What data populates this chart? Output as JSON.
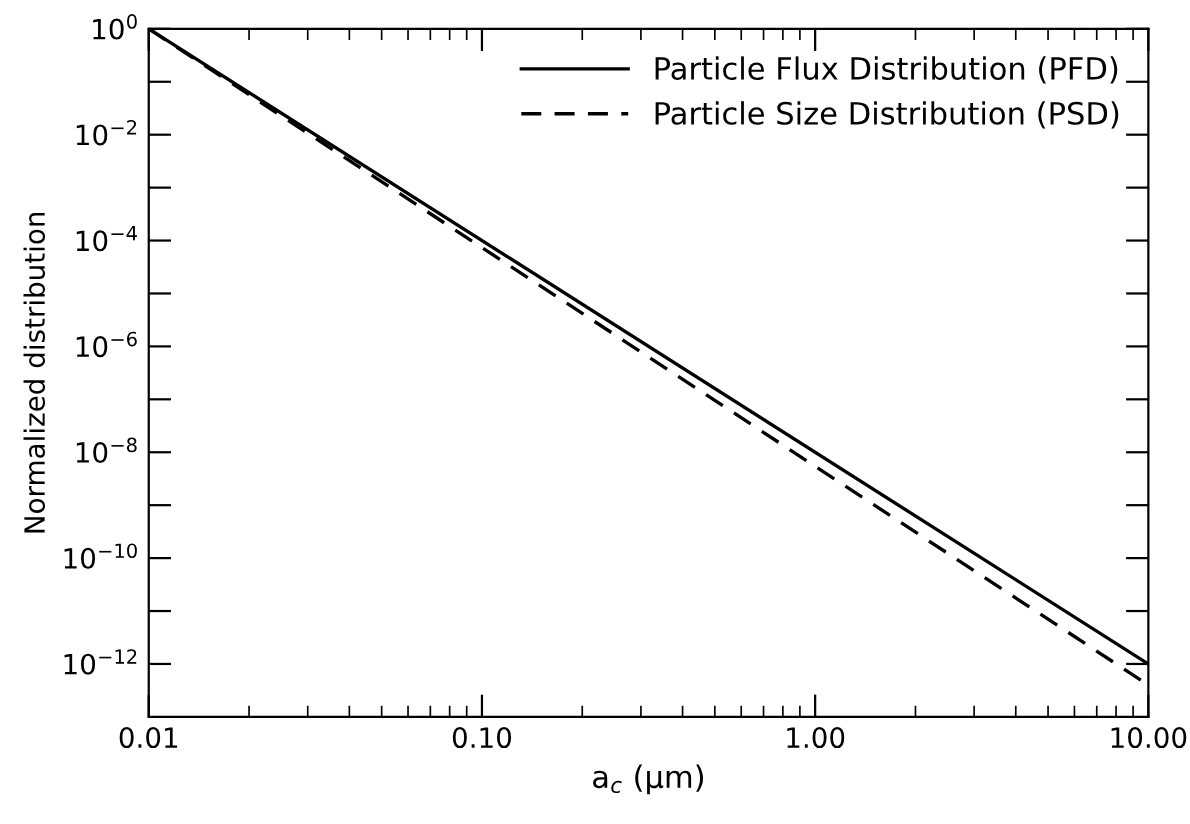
{
  "chart_data": {
    "type": "line",
    "log": "xy",
    "xlabel": "a$_{c}$ (μm)",
    "ylabel": "Normalized distribution",
    "x": [
      0.01,
      10
    ],
    "series": [
      {
        "name": "Particle Flux Distribution (PFD)",
        "color": "#000000",
        "line_style": "solid",
        "values": [
          1,
          1e-12
        ]
      },
      {
        "name": "Particle Size Distribution (PSD)",
        "color": "#000000",
        "line_style": "dashed",
        "values": [
          1,
          4e-13
        ]
      }
    ],
    "xlim": [
      0.01,
      10
    ],
    "ylim": [
      1e-13,
      1
    ],
    "xticks": [
      {
        "value": 0.01,
        "label": "0.01"
      },
      {
        "value": 0.1,
        "label": "0.10"
      },
      {
        "value": 1,
        "label": "1.00"
      },
      {
        "value": 10,
        "label": "10.00"
      }
    ],
    "yticks": [
      {
        "value": 1,
        "label": "10$^{0}$"
      },
      {
        "value": 0.1,
        "label": null
      },
      {
        "value": 0.01,
        "label": "10$^{−2}$"
      },
      {
        "value": 0.001,
        "label": null
      },
      {
        "value": 0.0001,
        "label": "10$^{−4}$"
      },
      {
        "value": 1e-05,
        "label": null
      },
      {
        "value": 1e-06,
        "label": "10$^{−6}$"
      },
      {
        "value": 1e-07,
        "label": null
      },
      {
        "value": 1e-08,
        "label": "10$^{−8}$"
      },
      {
        "value": 1e-09,
        "label": null
      },
      {
        "value": 1e-10,
        "label": "10$^{−10}$"
      },
      {
        "value": 1e-11,
        "label": null
      },
      {
        "value": 1e-12,
        "label": "10$^{−12}$"
      }
    ],
    "grid": false,
    "legend": "top right",
    "marker": "none"
  }
}
